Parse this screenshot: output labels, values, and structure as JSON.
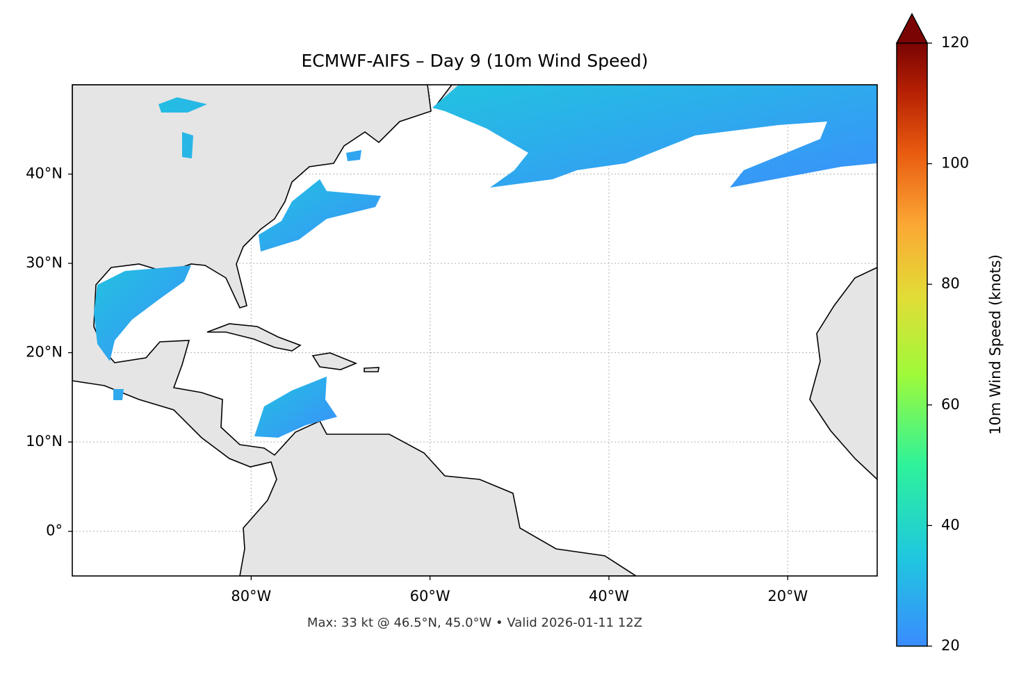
{
  "map": {
    "title": "ECMWF-AIFS – Day 9 (10m Wind Speed)",
    "footer": "Max: 33 kt @ 46.5°N, 45.0°W • Valid 2026-01-11 12Z",
    "xlim": [
      -100,
      -10
    ],
    "ylim": [
      -5,
      50
    ],
    "xticks": [
      {
        "value": -80,
        "label": "80°W"
      },
      {
        "value": -60,
        "label": "60°W"
      },
      {
        "value": -40,
        "label": "40°W"
      },
      {
        "value": -20,
        "label": "20°W"
      }
    ],
    "yticks": [
      {
        "value": 0,
        "label": "0°"
      },
      {
        "value": 10,
        "label": "10°N"
      },
      {
        "value": 20,
        "label": "20°N"
      },
      {
        "value": 30,
        "label": "30°N"
      },
      {
        "value": 40,
        "label": "40°N"
      }
    ],
    "grid": true,
    "colorbar": {
      "label": "10m Wind Speed (knots)",
      "lim": [
        20,
        120
      ],
      "ticks": [
        20,
        40,
        60,
        80,
        100,
        120
      ]
    }
  }
}
